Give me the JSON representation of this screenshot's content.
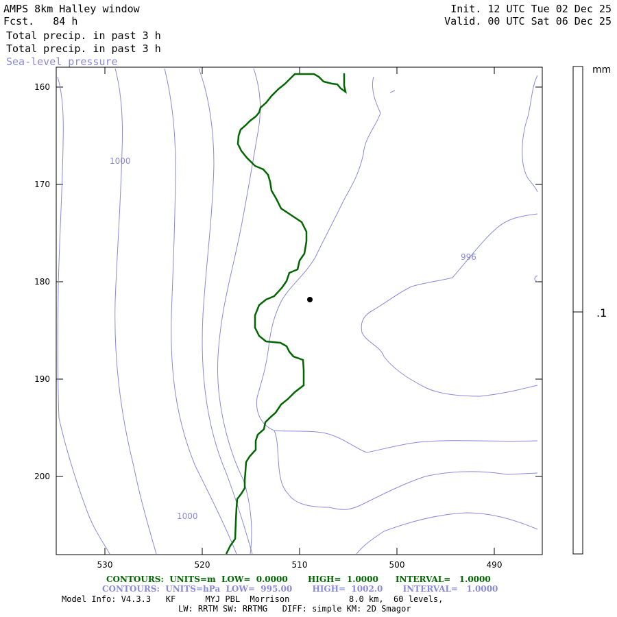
{
  "header": {
    "title": "AMPS 8km Halley window",
    "fcst": "Fcst.   84 h",
    "field1": "Total precip. in past 3 h",
    "field2": "Total precip. in past 3 h",
    "field3": "Sea-level pressure",
    "init": "Init. 12 UTC Tue 02 Dec 25",
    "valid": "Valid. 00 UTC Sat 06 Dec 25"
  },
  "axes": {
    "y_ticks": [
      "160",
      "170",
      "180",
      "190",
      "200"
    ],
    "x_ticks": [
      "530",
      "520",
      "510",
      "500",
      "490"
    ]
  },
  "contour_labels": {
    "upper_left": "1000",
    "lower_left": "1000",
    "right": "996"
  },
  "colorbar": {
    "unit": "mm",
    "level": ".1"
  },
  "footer": {
    "contours_green": "CONTOURS:  UNITS=m  LOW=  0.0000       HIGH=  1.0000      INTERVAL=   1.0000",
    "contours_blue": "CONTOURS:  UNITS=hPa  LOW=  995.00       HIGH=  1002.0       INTERVAL=   1.0000",
    "model_info_1": "Model Info: V4.3.3   KF      MYJ PBL  Morrison            8.0 km,  60 levels,",
    "model_info_2": "LW: RRTM SW: RRTMG   DIFF: simple KM: 2D Smagor"
  },
  "colors": {
    "coast": "#006600",
    "pressure": "#8888dd",
    "marker": "#000000"
  }
}
